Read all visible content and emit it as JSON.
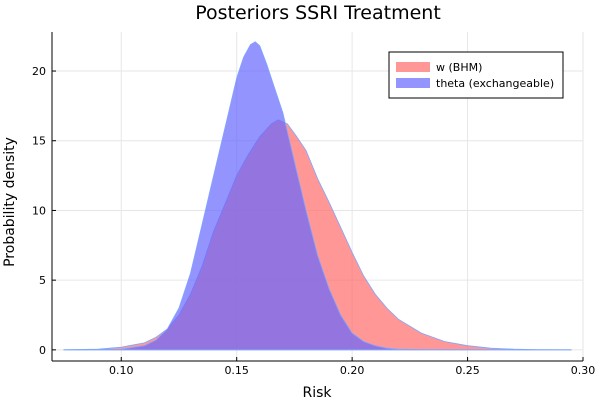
{
  "chart_data": {
    "type": "area",
    "title": "Posteriors SSRI Treatment",
    "xlabel": "Risk",
    "ylabel": "Probability density",
    "xlim": [
      0.07,
      0.3
    ],
    "ylim": [
      -0.8,
      22.8
    ],
    "xticks": [
      0.1,
      0.15,
      0.2,
      0.25,
      0.3
    ],
    "xtick_labels": [
      "0.10",
      "0.15",
      "0.20",
      "0.25",
      "0.30"
    ],
    "yticks": [
      0,
      5,
      10,
      15,
      20
    ],
    "ytick_labels": [
      "0",
      "5",
      "10",
      "15",
      "20"
    ],
    "grid": true,
    "legend_position": "top-right",
    "series": [
      {
        "name": "w (BHM)",
        "color": "#ff6b6b",
        "opacity": 0.7,
        "x": [
          0.075,
          0.09,
          0.1,
          0.11,
          0.115,
          0.12,
          0.125,
          0.13,
          0.135,
          0.14,
          0.145,
          0.15,
          0.155,
          0.16,
          0.165,
          0.168,
          0.172,
          0.176,
          0.18,
          0.185,
          0.19,
          0.195,
          0.2,
          0.205,
          0.21,
          0.215,
          0.22,
          0.23,
          0.24,
          0.25,
          0.26,
          0.27,
          0.28,
          0.295
        ],
        "y": [
          0.0,
          0.05,
          0.2,
          0.5,
          0.9,
          1.5,
          2.5,
          4.0,
          6.0,
          8.5,
          10.5,
          12.5,
          14.0,
          15.3,
          16.2,
          16.5,
          16.2,
          15.3,
          14.3,
          12.3,
          10.6,
          8.8,
          7.0,
          5.3,
          4.0,
          3.0,
          2.2,
          1.2,
          0.6,
          0.3,
          0.12,
          0.05,
          0.02,
          0.0
        ]
      },
      {
        "name": "theta (exchangeable)",
        "color": "#6666ff",
        "opacity": 0.7,
        "x": [
          0.075,
          0.1,
          0.11,
          0.115,
          0.12,
          0.125,
          0.13,
          0.135,
          0.14,
          0.145,
          0.15,
          0.153,
          0.156,
          0.158,
          0.16,
          0.163,
          0.166,
          0.17,
          0.175,
          0.18,
          0.185,
          0.19,
          0.195,
          0.2,
          0.205,
          0.21,
          0.215,
          0.22,
          0.23,
          0.24,
          0.25,
          0.26,
          0.28,
          0.295
        ],
        "y": [
          0.0,
          0.05,
          0.3,
          0.7,
          1.5,
          3.0,
          5.5,
          9.0,
          12.5,
          16.0,
          19.5,
          21.0,
          21.9,
          22.1,
          21.8,
          20.5,
          19.0,
          17.0,
          13.5,
          10.0,
          6.8,
          4.4,
          2.5,
          1.2,
          0.6,
          0.3,
          0.12,
          0.05,
          0.02,
          0.0,
          0.0,
          0.0,
          0.0,
          0.0
        ]
      }
    ]
  }
}
